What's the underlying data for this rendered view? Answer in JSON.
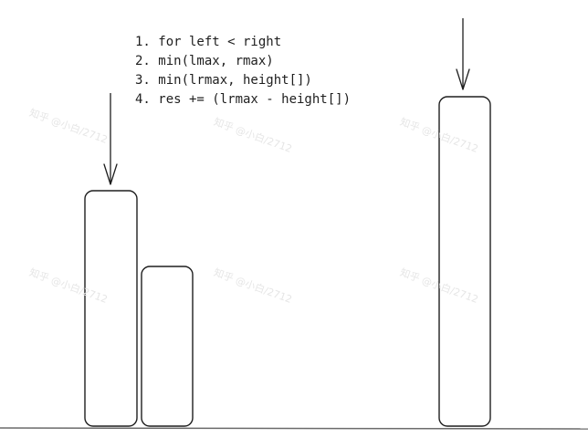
{
  "steps": [
    "1. for left < right",
    "2. min(lmax, rmax)",
    "3. min(lrmax, height[])",
    "4. res += (lrmax - height[])"
  ],
  "watermark_text": "知乎 @小白/2712",
  "colors": {
    "stroke": "#1e1e1e",
    "ground": "#6b6b6b",
    "background": "#ffffff",
    "watermark": "#e6e6e6"
  }
}
